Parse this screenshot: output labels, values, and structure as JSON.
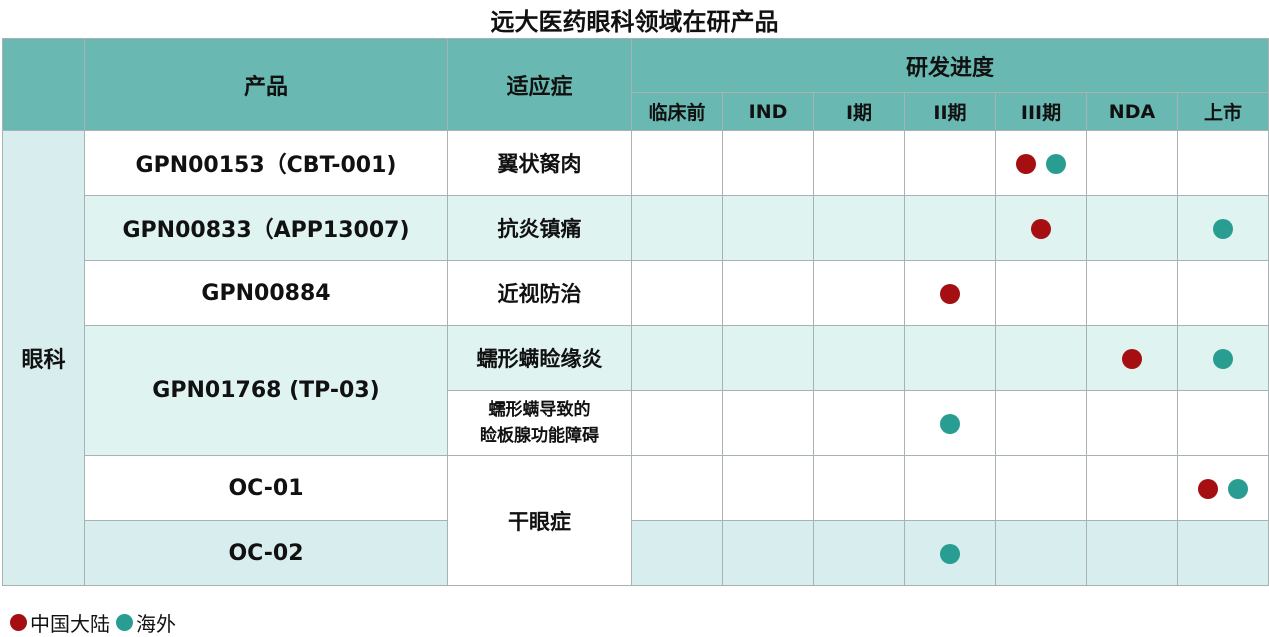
{
  "title": "远大医药眼科领域在研产品",
  "headers": {
    "area": "",
    "product": "产品",
    "indication": "适应症",
    "progress": "研发进度",
    "stages": [
      "临床前",
      "IND",
      "I期",
      "II期",
      "III期",
      "NDA",
      "上市"
    ]
  },
  "area": "眼科",
  "colors": {
    "header": "#6ab8b2",
    "china": "#a50f12",
    "overseas": "#2a9d93",
    "light_row": "#dff3f1"
  },
  "rows": [
    {
      "product": "GPN00153（CBT-001)",
      "indication": "翼状胬肉",
      "dots": {
        "III期": [
          "china",
          "overseas"
        ]
      }
    },
    {
      "product": "GPN00833（APP13007)",
      "indication": "抗炎镇痛",
      "dots": {
        "III期": [
          "china"
        ],
        "上市": [
          "overseas"
        ]
      }
    },
    {
      "product": "GPN00884",
      "indication": "近视防治",
      "dots": {
        "II期": [
          "china"
        ]
      }
    },
    {
      "product": "GPN01768 (TP-03)",
      "indication": "蠕形螨睑缘炎",
      "dots": {
        "NDA": [
          "china"
        ],
        "上市": [
          "overseas"
        ]
      }
    },
    {
      "product": "",
      "indication": "蠕形螨导致的睑板腺功能障碍",
      "dots": {
        "II期": [
          "overseas"
        ]
      }
    },
    {
      "product": "OC-01",
      "indication": "干眼症",
      "dots": {
        "上市": [
          "china",
          "overseas"
        ]
      }
    },
    {
      "product": "OC-02",
      "indication": "",
      "dots": {
        "II期": [
          "overseas"
        ]
      }
    }
  ],
  "legend": [
    {
      "key": "china",
      "label": "中国大陆"
    },
    {
      "key": "overseas",
      "label": "海外"
    }
  ]
}
